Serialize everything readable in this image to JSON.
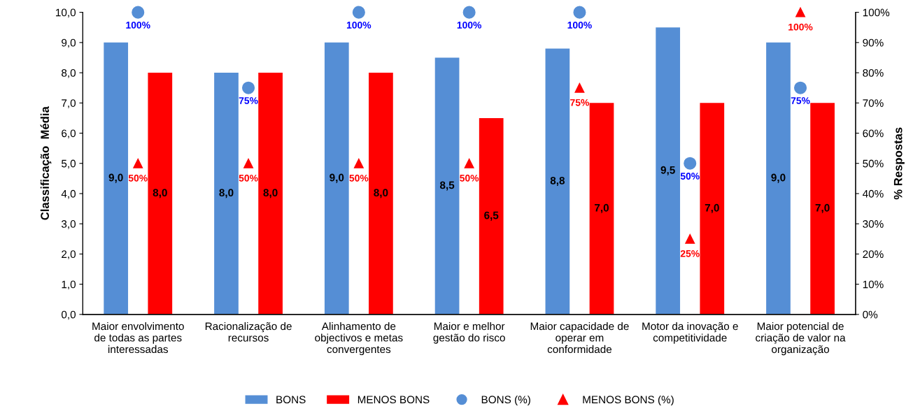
{
  "chart_data": {
    "type": "bar",
    "categories": [
      "Maior envolvimento de todas as partes interessadas",
      "Racionalização de recursos",
      "Alinhamento de objectivos e metas convergentes",
      "Maior e melhor gestão do risco",
      "Maior capacidade de operar em conformidade",
      "Motor da inovação e competitividade",
      "Maior potencial de criação de valor na organização"
    ],
    "ylabel": "Classificação  Média",
    "y2label": "% Respostas",
    "ylim": [
      0,
      10
    ],
    "yticks": [
      {
        "value": 0,
        "label": "0,0"
      },
      {
        "value": 1,
        "label": "1,0"
      },
      {
        "value": 2,
        "label": "2,0"
      },
      {
        "value": 3,
        "label": "3,0"
      },
      {
        "value": 4,
        "label": "4,0"
      },
      {
        "value": 5,
        "label": "5,0"
      },
      {
        "value": 6,
        "label": "6,0"
      },
      {
        "value": 7,
        "label": "7,0"
      },
      {
        "value": 8,
        "label": "8,0"
      },
      {
        "value": 9,
        "label": "9,0"
      },
      {
        "value": 10,
        "label": "10,0"
      }
    ],
    "y2lim": [
      0,
      100
    ],
    "y2ticks": [
      {
        "value": 0,
        "label": "0%"
      },
      {
        "value": 10,
        "label": "10%"
      },
      {
        "value": 20,
        "label": "20%"
      },
      {
        "value": 30,
        "label": "30%"
      },
      {
        "value": 40,
        "label": "40%"
      },
      {
        "value": 50,
        "label": "50%"
      },
      {
        "value": 60,
        "label": "60%"
      },
      {
        "value": 70,
        "label": "70%"
      },
      {
        "value": 80,
        "label": "80%"
      },
      {
        "value": 90,
        "label": "90%"
      },
      {
        "value": 100,
        "label": "100%"
      }
    ],
    "series": [
      {
        "name": "BONS",
        "color": "#558ed5",
        "values": [
          9.0,
          8.0,
          9.0,
          8.5,
          8.8,
          9.5,
          9.0
        ],
        "value_labels": [
          "9,0",
          "8,0",
          "9,0",
          "8,5",
          "8,8",
          "9,5",
          "9,0"
        ]
      },
      {
        "name": "MENOS BONS",
        "color": "#ff0000",
        "values": [
          8.0,
          8.0,
          8.0,
          6.5,
          7.0,
          7.0,
          7.0
        ],
        "value_labels": [
          "8,0",
          "8,0",
          "8,0",
          "6,5",
          "7,0",
          "7,0",
          "7,0"
        ]
      },
      {
        "name": "BONS (%)",
        "type": "scatter",
        "axis": "y2",
        "marker": "circle",
        "color": "#558ed5",
        "values": [
          100,
          75,
          100,
          100,
          100,
          50,
          75
        ],
        "value_labels": [
          "100%",
          "75%",
          "100%",
          "100%",
          "100%",
          "50%",
          "75%"
        ]
      },
      {
        "name": "MENOS BONS (%)",
        "type": "scatter",
        "axis": "y2",
        "marker": "triangle",
        "color": "#ff0000",
        "values": [
          50,
          50,
          50,
          50,
          75,
          25,
          100
        ],
        "value_labels": [
          "50%",
          "50%",
          "50%",
          "50%",
          "75%",
          "25%",
          "100%"
        ]
      }
    ],
    "grid": false,
    "legend": "bottom"
  }
}
